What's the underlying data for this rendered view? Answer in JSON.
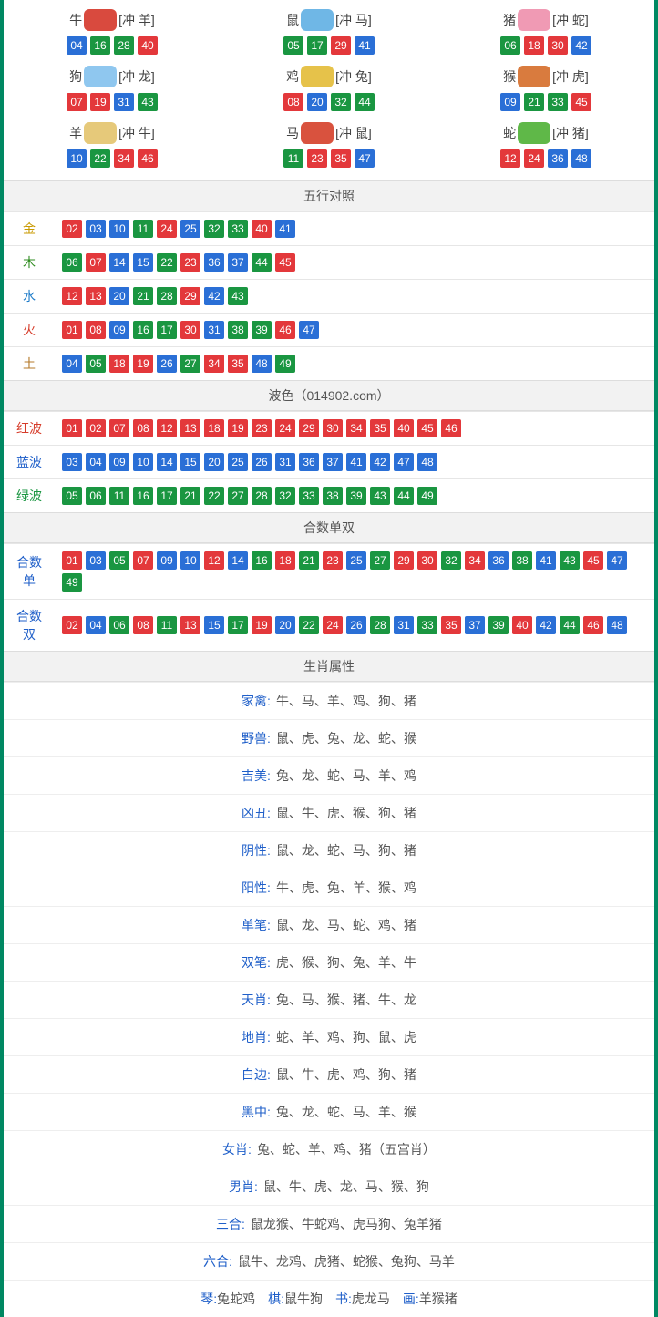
{
  "colors": {
    "red": "#e3383b",
    "blue": "#2a6fd6",
    "green": "#1a9641",
    "gold": "#c99a00",
    "wood": "#2e8b1f",
    "water": "#1f7cc9",
    "fire": "#d63c2a",
    "earth": "#b57a2a",
    "redwave_label": "#d63c2a",
    "bluewave_label": "#1f5fc9",
    "greenwave_label": "#1a9641",
    "attr_key": "#1f5fc9",
    "border": "#008862"
  },
  "ball_color_by_number": {
    "01": "red",
    "02": "red",
    "07": "red",
    "08": "red",
    "12": "red",
    "13": "red",
    "18": "red",
    "19": "red",
    "23": "red",
    "24": "red",
    "29": "red",
    "30": "red",
    "34": "red",
    "35": "red",
    "40": "red",
    "45": "red",
    "46": "red",
    "03": "blue",
    "04": "blue",
    "09": "blue",
    "10": "blue",
    "14": "blue",
    "15": "blue",
    "20": "blue",
    "25": "blue",
    "26": "blue",
    "31": "blue",
    "36": "blue",
    "37": "blue",
    "41": "blue",
    "42": "blue",
    "47": "blue",
    "48": "blue",
    "05": "green",
    "06": "green",
    "11": "green",
    "16": "green",
    "17": "green",
    "21": "green",
    "22": "green",
    "27": "green",
    "28": "green",
    "32": "green",
    "33": "green",
    "38": "green",
    "39": "green",
    "43": "green",
    "44": "green",
    "49": "green"
  },
  "zodiac_icon_colors": {
    "牛": "#d94a3e",
    "鼠": "#6fb7e6",
    "猪": "#f09ab4",
    "狗": "#8fc7ef",
    "鸡": "#e6c24a",
    "猴": "#d97b3e",
    "羊": "#e6c97a",
    "马": "#d9523e",
    "蛇": "#5fb848"
  },
  "zodiac": [
    {
      "name": "牛",
      "clash": "[冲 羊]",
      "balls": [
        "04",
        "16",
        "28",
        "40"
      ]
    },
    {
      "name": "鼠",
      "clash": "[冲 马]",
      "balls": [
        "05",
        "17",
        "29",
        "41"
      ]
    },
    {
      "name": "猪",
      "clash": "[冲 蛇]",
      "balls": [
        "06",
        "18",
        "30",
        "42"
      ]
    },
    {
      "name": "狗",
      "clash": "[冲 龙]",
      "balls": [
        "07",
        "19",
        "31",
        "43"
      ]
    },
    {
      "name": "鸡",
      "clash": "[冲 兔]",
      "balls": [
        "08",
        "20",
        "32",
        "44"
      ]
    },
    {
      "name": "猴",
      "clash": "[冲 虎]",
      "balls": [
        "09",
        "21",
        "33",
        "45"
      ]
    },
    {
      "name": "羊",
      "clash": "[冲 牛]",
      "balls": [
        "10",
        "22",
        "34",
        "46"
      ]
    },
    {
      "name": "马",
      "clash": "[冲 鼠]",
      "balls": [
        "11",
        "23",
        "35",
        "47"
      ]
    },
    {
      "name": "蛇",
      "clash": "[冲 猪]",
      "balls": [
        "12",
        "24",
        "36",
        "48"
      ]
    }
  ],
  "sections": {
    "wuxing": {
      "title": "五行对照",
      "rows": [
        {
          "label": "金",
          "label_color": "gold",
          "balls": [
            "02",
            "03",
            "10",
            "11",
            "24",
            "25",
            "32",
            "33",
            "40",
            "41"
          ]
        },
        {
          "label": "木",
          "label_color": "wood",
          "balls": [
            "06",
            "07",
            "14",
            "15",
            "22",
            "23",
            "36",
            "37",
            "44",
            "45"
          ]
        },
        {
          "label": "水",
          "label_color": "water",
          "balls": [
            "12",
            "13",
            "20",
            "21",
            "28",
            "29",
            "42",
            "43"
          ]
        },
        {
          "label": "火",
          "label_color": "fire",
          "balls": [
            "01",
            "08",
            "09",
            "16",
            "17",
            "30",
            "31",
            "38",
            "39",
            "46",
            "47"
          ]
        },
        {
          "label": "土",
          "label_color": "earth",
          "balls": [
            "04",
            "05",
            "18",
            "19",
            "26",
            "27",
            "34",
            "35",
            "48",
            "49"
          ]
        }
      ]
    },
    "bose": {
      "title": "波色（014902.com）",
      "rows": [
        {
          "label": "红波",
          "label_color": "redwave_label",
          "balls": [
            "01",
            "02",
            "07",
            "08",
            "12",
            "13",
            "18",
            "19",
            "23",
            "24",
            "29",
            "30",
            "34",
            "35",
            "40",
            "45",
            "46"
          ]
        },
        {
          "label": "蓝波",
          "label_color": "bluewave_label",
          "balls": [
            "03",
            "04",
            "09",
            "10",
            "14",
            "15",
            "20",
            "25",
            "26",
            "31",
            "36",
            "37",
            "41",
            "42",
            "47",
            "48"
          ]
        },
        {
          "label": "绿波",
          "label_color": "greenwave_label",
          "balls": [
            "05",
            "06",
            "11",
            "16",
            "17",
            "21",
            "22",
            "27",
            "28",
            "32",
            "33",
            "38",
            "39",
            "43",
            "44",
            "49"
          ]
        }
      ]
    },
    "heshu": {
      "title": "合数单双",
      "rows": [
        {
          "label": "合数单",
          "label_color": "bluewave_label",
          "balls": [
            "01",
            "03",
            "05",
            "07",
            "09",
            "10",
            "12",
            "14",
            "16",
            "18",
            "21",
            "23",
            "25",
            "27",
            "29",
            "30",
            "32",
            "34",
            "36",
            "38",
            "41",
            "43",
            "45",
            "47",
            "49"
          ]
        },
        {
          "label": "合数双",
          "label_color": "bluewave_label",
          "balls": [
            "02",
            "04",
            "06",
            "08",
            "11",
            "13",
            "15",
            "17",
            "19",
            "20",
            "22",
            "24",
            "26",
            "28",
            "31",
            "33",
            "35",
            "37",
            "39",
            "40",
            "42",
            "44",
            "46",
            "48"
          ]
        }
      ]
    },
    "attrs": {
      "title": "生肖属性",
      "rows": [
        {
          "k": "家禽:",
          "v": "牛、马、羊、鸡、狗、猪"
        },
        {
          "k": "野兽:",
          "v": "鼠、虎、兔、龙、蛇、猴"
        },
        {
          "k": "吉美:",
          "v": "兔、龙、蛇、马、羊、鸡"
        },
        {
          "k": "凶丑:",
          "v": "鼠、牛、虎、猴、狗、猪"
        },
        {
          "k": "阴性:",
          "v": "鼠、龙、蛇、马、狗、猪"
        },
        {
          "k": "阳性:",
          "v": "牛、虎、兔、羊、猴、鸡"
        },
        {
          "k": "单笔:",
          "v": "鼠、龙、马、蛇、鸡、猪"
        },
        {
          "k": "双笔:",
          "v": "虎、猴、狗、兔、羊、牛"
        },
        {
          "k": "天肖:",
          "v": "兔、马、猴、猪、牛、龙"
        },
        {
          "k": "地肖:",
          "v": "蛇、羊、鸡、狗、鼠、虎"
        },
        {
          "k": "白边:",
          "v": "鼠、牛、虎、鸡、狗、猪"
        },
        {
          "k": "黑中:",
          "v": "兔、龙、蛇、马、羊、猴"
        },
        {
          "k": "女肖:",
          "v": "兔、蛇、羊、鸡、猪（五宫肖）"
        },
        {
          "k": "男肖:",
          "v": "鼠、牛、虎、龙、马、猴、狗"
        },
        {
          "k": "三合:",
          "v": "鼠龙猴、牛蛇鸡、虎马狗、兔羊猪"
        },
        {
          "k": "六合:",
          "v": "鼠牛、龙鸡、虎猪、蛇猴、兔狗、马羊"
        }
      ],
      "footer": [
        {
          "k": "琴:",
          "v": "兔蛇鸡"
        },
        {
          "k": "棋:",
          "v": "鼠牛狗"
        },
        {
          "k": "书:",
          "v": "虎龙马"
        },
        {
          "k": "画:",
          "v": "羊猴猪"
        }
      ]
    }
  }
}
